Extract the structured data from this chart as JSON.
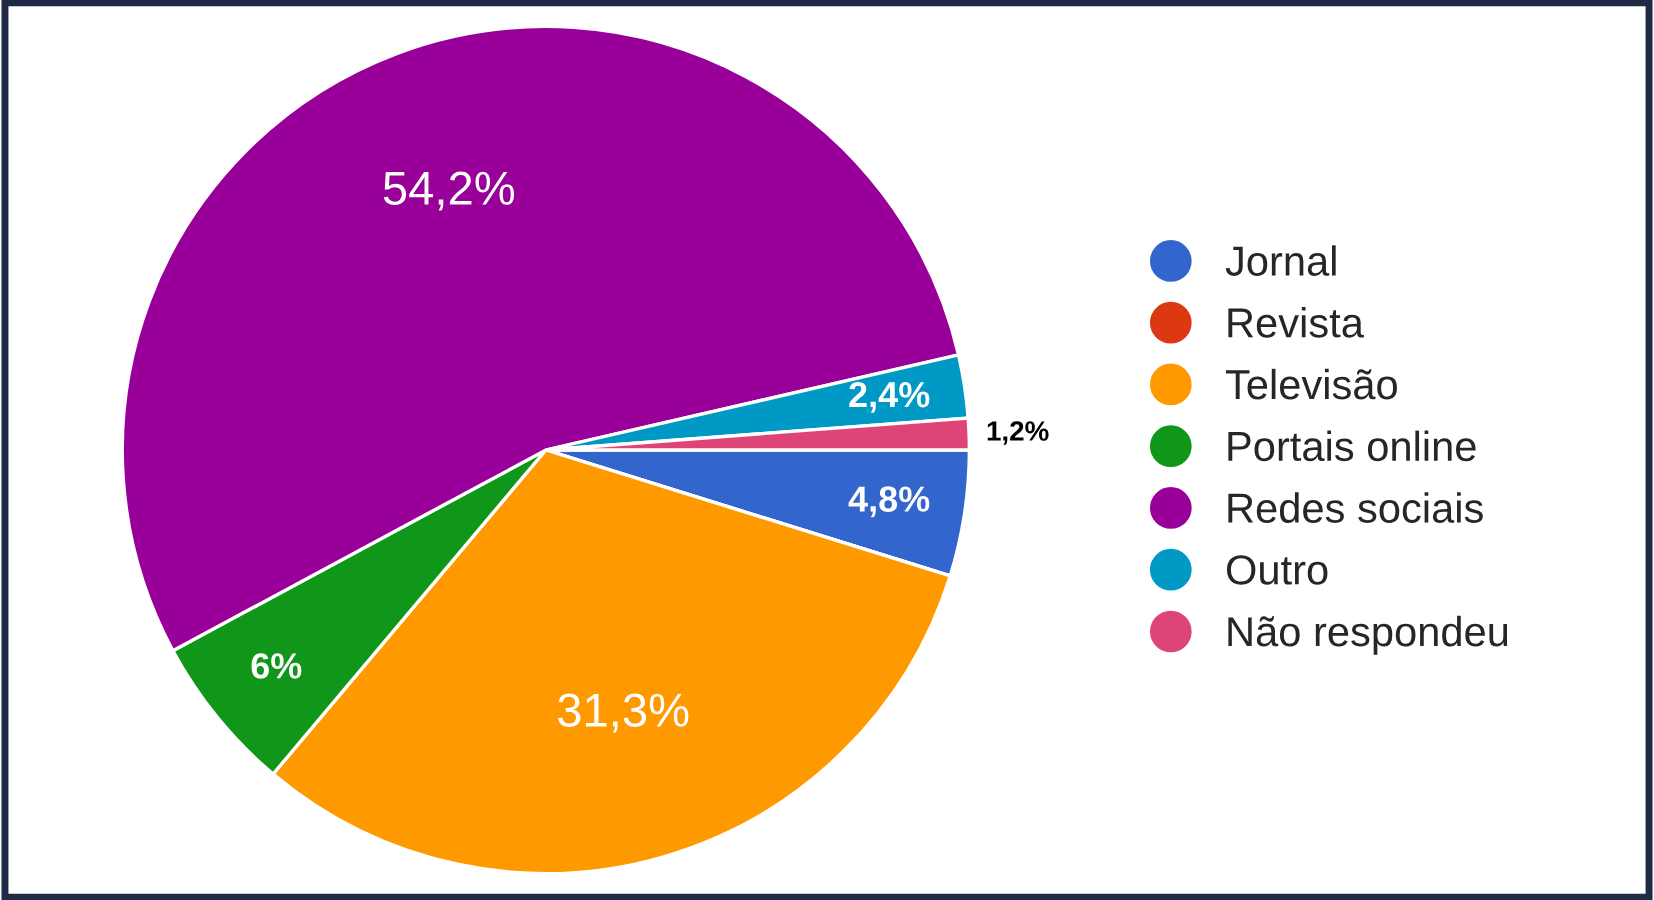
{
  "chart_data": {
    "type": "pie",
    "categories": [
      "Jornal",
      "Revista",
      "Televisão",
      "Portais online",
      "Redes sociais",
      "Outro",
      "Não respondeu"
    ],
    "values": [
      4.8,
      0,
      31.3,
      6,
      54.2,
      2.4,
      1.2
    ],
    "value_labels": [
      "4,8%",
      null,
      "31,3%",
      "6%",
      "54,2%",
      "2,4%",
      "1,2%"
    ],
    "colors": [
      "#3366cc",
      "#dc3912",
      "#ff9900",
      "#109618",
      "#990099",
      "#0099c6",
      "#dd4477"
    ],
    "legend": "right"
  }
}
